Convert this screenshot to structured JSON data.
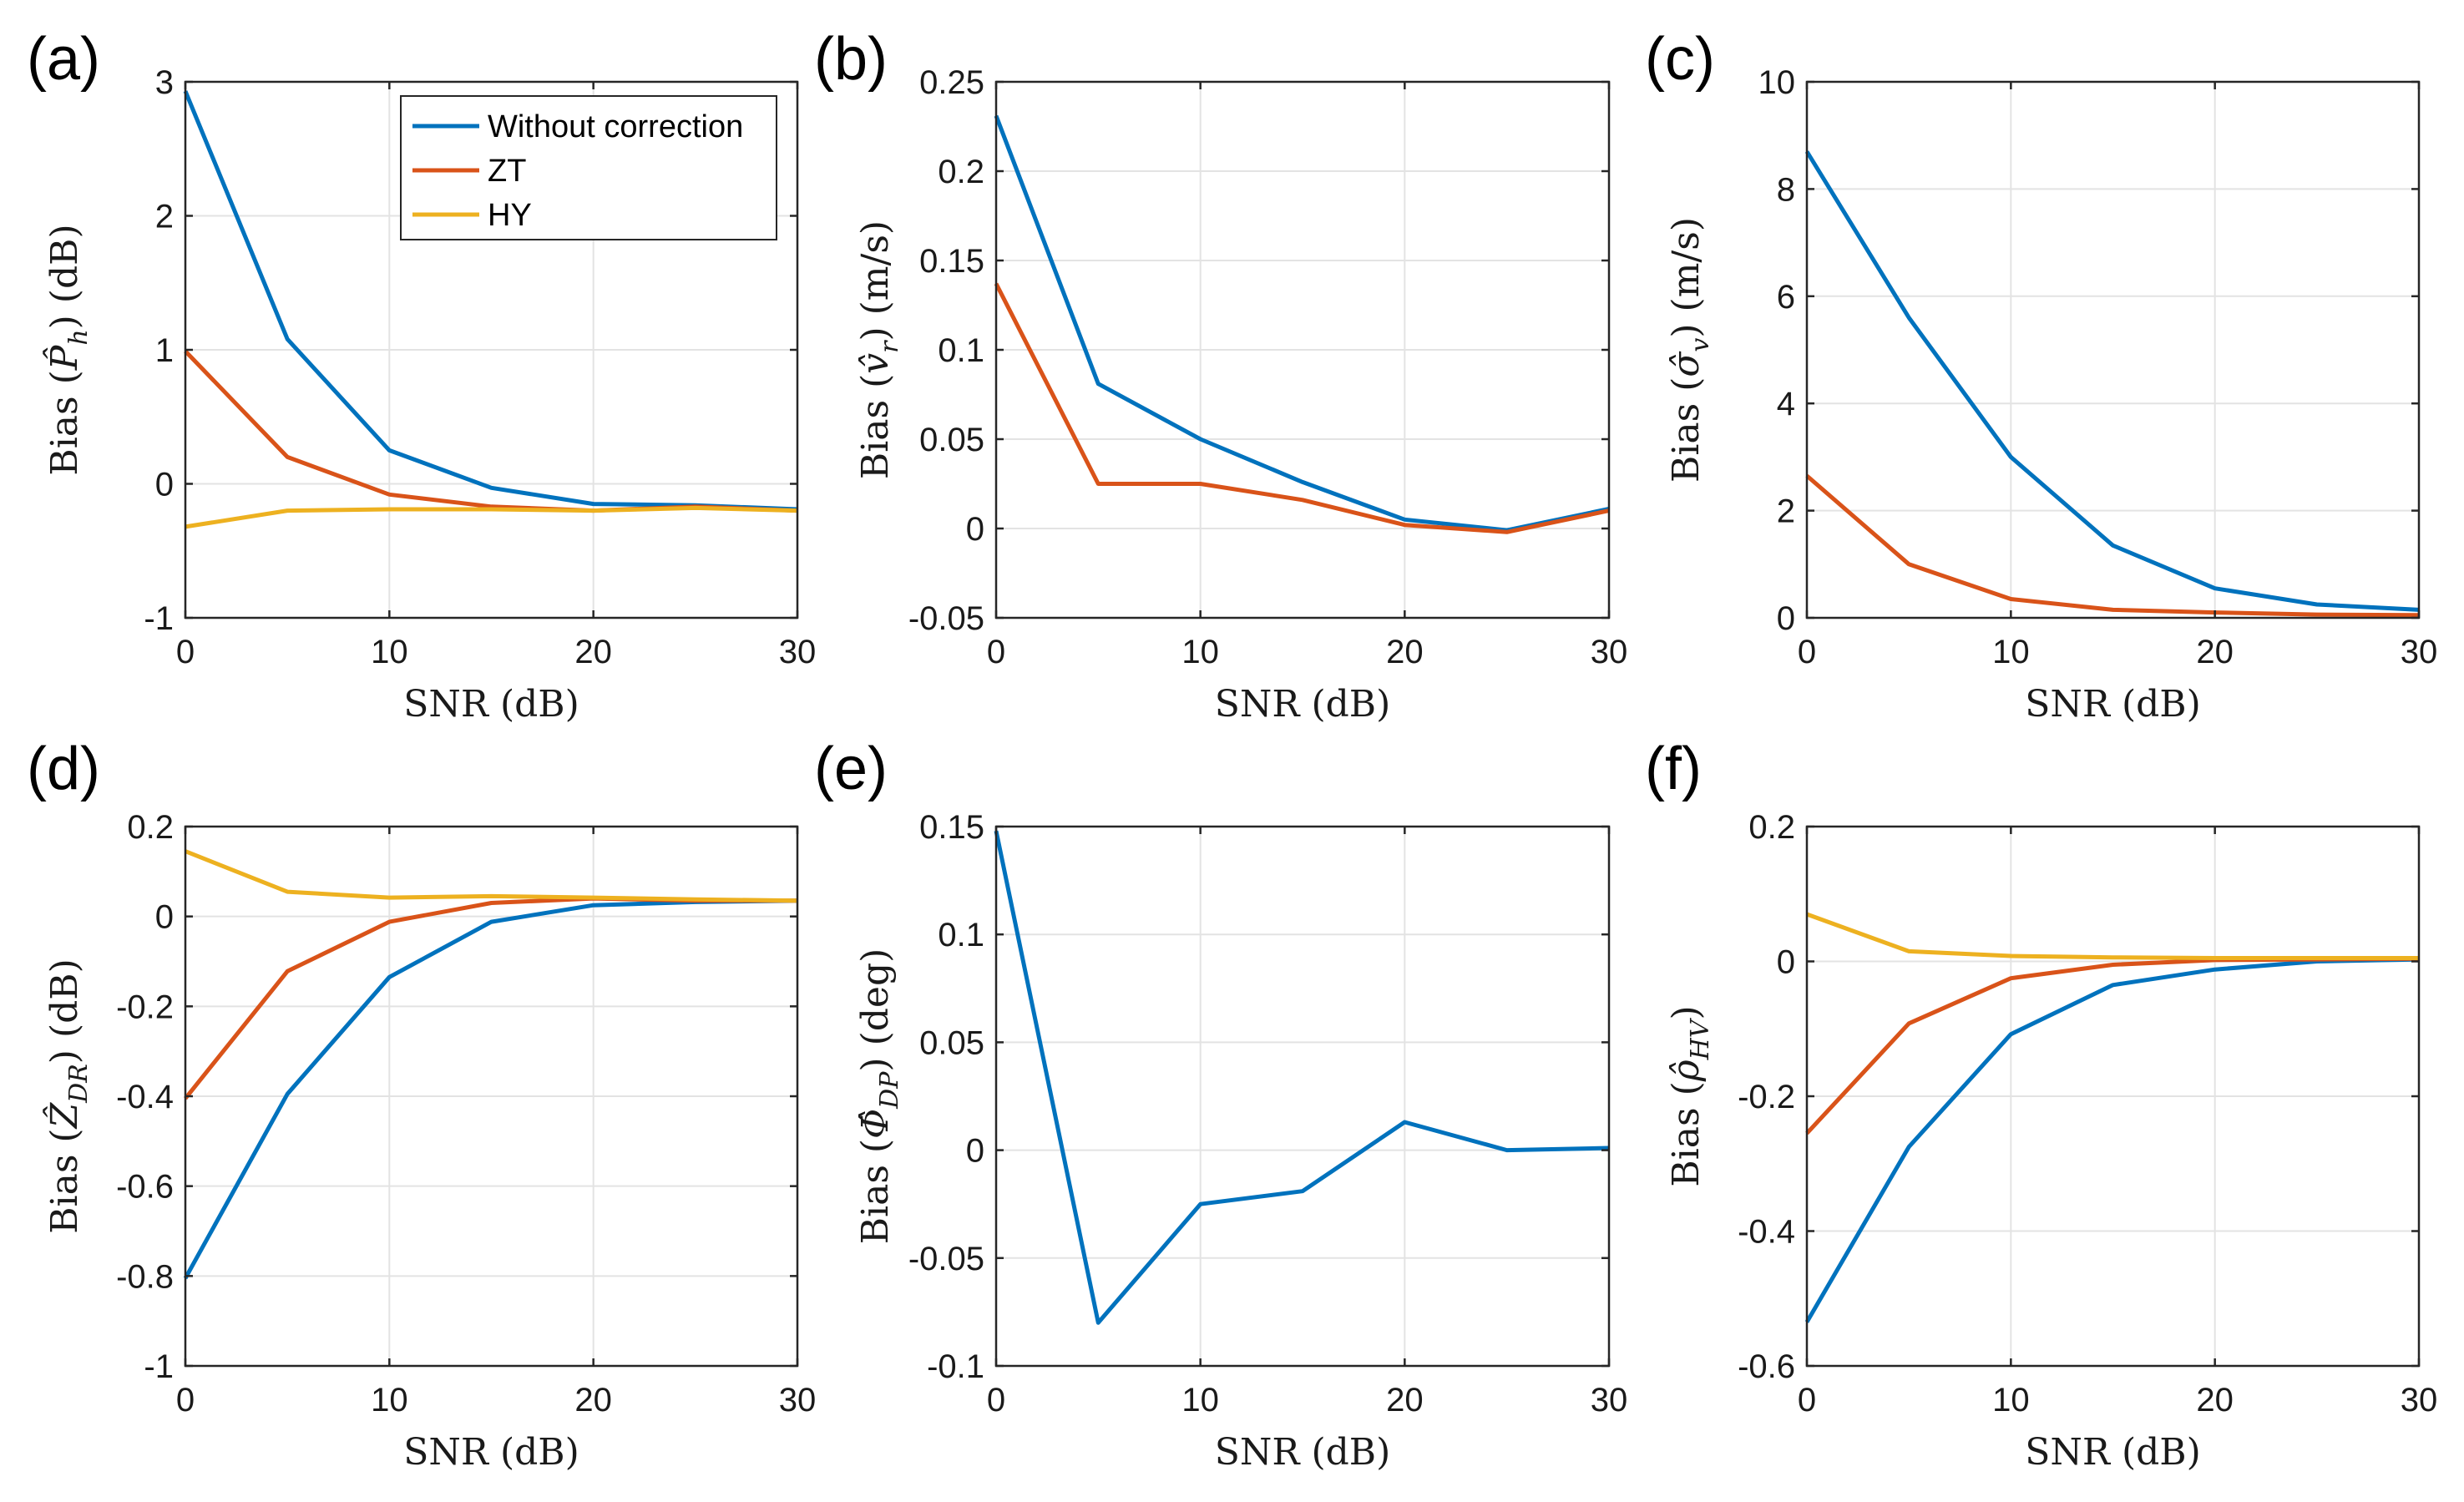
{
  "colors": {
    "without": "#0072bd",
    "zt": "#d95319",
    "hy": "#edb120"
  },
  "legend": {
    "location": "top-right of panel (a)",
    "entries": [
      "Without correction",
      "ZT",
      "HY"
    ]
  },
  "chart_data": [
    {
      "type": "line",
      "panel": "(a)",
      "xlabel": "SNR (dB)",
      "ylabel": "Bias (P̂h) (dB)",
      "ylabel_pre": "Bias (",
      "ylabel_sym": "P̂",
      "ylabel_sub": "h",
      "ylabel_post": ") (dB)",
      "xlim": [
        0,
        30
      ],
      "ylim": [
        -1,
        3
      ],
      "xticks": [
        0,
        10,
        20,
        30
      ],
      "xtick_labels": [
        "0",
        "10",
        "20",
        "30"
      ],
      "yticks": [
        -1,
        0,
        1,
        2,
        3
      ],
      "ytick_labels": [
        "-1",
        "0",
        "1",
        "2",
        "3"
      ],
      "grid": true,
      "x": [
        0,
        5,
        10,
        15,
        20,
        25,
        30
      ],
      "series": [
        {
          "name": "Without correction",
          "color": "#0072bd",
          "values": [
            2.93,
            1.08,
            0.25,
            -0.03,
            -0.15,
            -0.16,
            -0.19
          ]
        },
        {
          "name": "ZT",
          "color": "#d95319",
          "values": [
            0.99,
            0.2,
            -0.08,
            -0.17,
            -0.2,
            -0.17,
            -0.2
          ]
        },
        {
          "name": "HY",
          "color": "#edb120",
          "values": [
            -0.32,
            -0.2,
            -0.19,
            -0.19,
            -0.2,
            -0.18,
            -0.2
          ]
        }
      ]
    },
    {
      "type": "line",
      "panel": "(b)",
      "xlabel": "SNR (dB)",
      "ylabel": "Bias (v̂r) (m/s)",
      "ylabel_pre": "Bias (",
      "ylabel_sym": "v̂",
      "ylabel_sub": "r",
      "ylabel_post": ") (m/s)",
      "xlim": [
        0,
        30
      ],
      "ylim": [
        -0.05,
        0.25
      ],
      "xticks": [
        0,
        10,
        20,
        30
      ],
      "xtick_labels": [
        "0",
        "10",
        "20",
        "30"
      ],
      "yticks": [
        -0.05,
        0,
        0.05,
        0.1,
        0.15,
        0.2,
        0.25
      ],
      "ytick_labels": [
        "-0.05",
        "0",
        "0.05",
        "0.1",
        "0.15",
        "0.2",
        "0.25"
      ],
      "grid": true,
      "x": [
        0,
        5,
        10,
        15,
        20,
        25,
        30
      ],
      "series": [
        {
          "name": "Without correction",
          "color": "#0072bd",
          "values": [
            0.231,
            0.081,
            0.05,
            0.026,
            0.005,
            -0.001,
            0.011
          ]
        },
        {
          "name": "ZT",
          "color": "#d95319",
          "values": [
            0.137,
            0.025,
            0.025,
            0.016,
            0.002,
            -0.002,
            0.01
          ]
        }
      ]
    },
    {
      "type": "line",
      "panel": "(c)",
      "xlabel": "SNR (dB)",
      "ylabel": "Bias (σ̂v) (m/s)",
      "ylabel_pre": "Bias (",
      "ylabel_sym": "σ̂",
      "ylabel_sub": "v",
      "ylabel_post": ") (m/s)",
      "xlim": [
        0,
        30
      ],
      "ylim": [
        0,
        10
      ],
      "xticks": [
        0,
        10,
        20,
        30
      ],
      "xtick_labels": [
        "0",
        "10",
        "20",
        "30"
      ],
      "yticks": [
        0,
        2,
        4,
        6,
        8,
        10
      ],
      "ytick_labels": [
        "0",
        "2",
        "4",
        "6",
        "8",
        "10"
      ],
      "grid": true,
      "x": [
        0,
        5,
        10,
        15,
        20,
        25,
        30
      ],
      "series": [
        {
          "name": "Without correction",
          "color": "#0072bd",
          "values": [
            8.7,
            5.6,
            3.0,
            1.35,
            0.55,
            0.25,
            0.15
          ]
        },
        {
          "name": "ZT",
          "color": "#d95319",
          "values": [
            2.65,
            1.0,
            0.35,
            0.15,
            0.1,
            0.06,
            0.05
          ]
        }
      ]
    },
    {
      "type": "line",
      "panel": "(d)",
      "xlabel": "SNR (dB)",
      "ylabel": "Bias (ẐDR) (dB)",
      "ylabel_pre": "Bias (",
      "ylabel_sym": "Ẑ",
      "ylabel_sub": "DR",
      "ylabel_post": ") (dB)",
      "xlim": [
        0,
        30
      ],
      "ylim": [
        -1,
        0.2
      ],
      "xticks": [
        0,
        10,
        20,
        30
      ],
      "xtick_labels": [
        "0",
        "10",
        "20",
        "30"
      ],
      "yticks": [
        -1,
        -0.8,
        -0.6,
        -0.4,
        -0.2,
        0,
        0.2
      ],
      "ytick_labels": [
        "-1",
        "-0.8",
        "-0.6",
        "-0.4",
        "-0.2",
        "0",
        "0.2"
      ],
      "grid": true,
      "x": [
        0,
        5,
        10,
        15,
        20,
        25,
        30
      ],
      "series": [
        {
          "name": "Without correction",
          "color": "#0072bd",
          "values": [
            -0.805,
            -0.395,
            -0.135,
            -0.012,
            0.025,
            0.032,
            0.035
          ]
        },
        {
          "name": "ZT",
          "color": "#d95319",
          "values": [
            -0.405,
            -0.122,
            -0.012,
            0.03,
            0.04,
            0.035,
            0.035
          ]
        },
        {
          "name": "HY",
          "color": "#edb120",
          "values": [
            0.145,
            0.055,
            0.042,
            0.045,
            0.042,
            0.038,
            0.035
          ]
        }
      ]
    },
    {
      "type": "line",
      "panel": "(e)",
      "xlabel": "SNR (dB)",
      "ylabel": "Bias (Φ̂DP) (deg)",
      "ylabel_pre": "Bias (",
      "ylabel_sym": "Φ̂",
      "ylabel_sub": "DP",
      "ylabel_post": ") (deg)",
      "xlim": [
        0,
        30
      ],
      "ylim": [
        -0.1,
        0.15
      ],
      "xticks": [
        0,
        10,
        20,
        30
      ],
      "xtick_labels": [
        "0",
        "10",
        "20",
        "30"
      ],
      "yticks": [
        -0.1,
        -0.05,
        0,
        0.05,
        0.1,
        0.15
      ],
      "ytick_labels": [
        "-0.1",
        "-0.05",
        "0",
        "0.05",
        "0.1",
        "0.15"
      ],
      "grid": true,
      "x": [
        0,
        5,
        10,
        15,
        20,
        25,
        30
      ],
      "series": [
        {
          "name": "Without correction",
          "color": "#0072bd",
          "values": [
            0.148,
            -0.08,
            -0.025,
            -0.019,
            0.013,
            0.0,
            0.001
          ]
        }
      ]
    },
    {
      "type": "line",
      "panel": "(f)",
      "xlabel": "SNR (dB)",
      "ylabel": "Bias (ρ̂HV)",
      "ylabel_pre": "Bias (",
      "ylabel_sym": "ρ̂",
      "ylabel_sub": "HV",
      "ylabel_post": ")",
      "xlim": [
        0,
        30
      ],
      "ylim": [
        -0.6,
        0.2
      ],
      "xticks": [
        0,
        10,
        20,
        30
      ],
      "xtick_labels": [
        "0",
        "10",
        "20",
        "30"
      ],
      "yticks": [
        -0.6,
        -0.4,
        -0.2,
        0,
        0.2
      ],
      "ytick_labels": [
        "-0.6",
        "-0.4",
        "-0.2",
        "0",
        "0.2"
      ],
      "grid": true,
      "x": [
        0,
        5,
        10,
        15,
        20,
        25,
        30
      ],
      "series": [
        {
          "name": "Without correction",
          "color": "#0072bd",
          "values": [
            -0.535,
            -0.275,
            -0.108,
            -0.035,
            -0.012,
            0.0,
            0.003
          ]
        },
        {
          "name": "ZT",
          "color": "#d95319",
          "values": [
            -0.255,
            -0.092,
            -0.025,
            -0.005,
            0.002,
            0.003,
            0.004
          ]
        },
        {
          "name": "HY",
          "color": "#edb120",
          "values": [
            0.07,
            0.015,
            0.008,
            0.006,
            0.005,
            0.005,
            0.005
          ]
        }
      ]
    }
  ]
}
